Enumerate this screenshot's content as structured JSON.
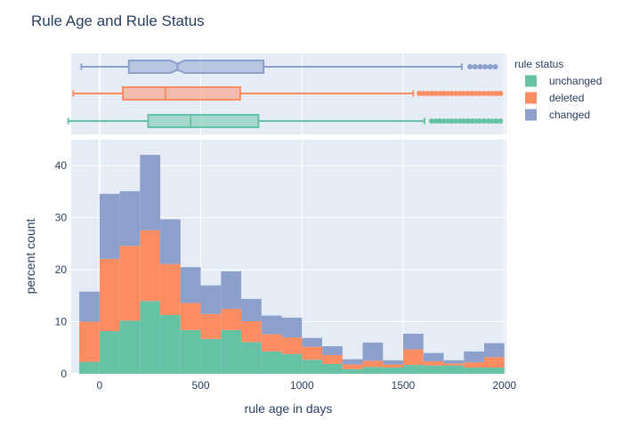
{
  "chart_data": {
    "type": "histogram-stacked-with-boxplots",
    "title": "Rule Age and Rule Status",
    "xlabel": "rule age in days",
    "ylabel": "percent count",
    "xlim": [
      -140,
      2010
    ],
    "ylim": [
      0,
      45
    ],
    "x_ticks": [
      0,
      500,
      1000,
      1500,
      2000
    ],
    "y_ticks": [
      0,
      10,
      20,
      30,
      40
    ],
    "legend_title": "rule status",
    "legend_position": "right",
    "grid": true,
    "colors": {
      "plot_bg": "#e5ecf6",
      "grid": "#ffffff",
      "text": "#2a3f5f"
    },
    "bin_edges": [
      -100,
      0,
      100,
      200,
      300,
      400,
      500,
      600,
      700,
      800,
      900,
      1000,
      1100,
      1200,
      1300,
      1400,
      1500,
      1600,
      1700,
      1800,
      1900,
      2000
    ],
    "series": [
      {
        "name": "unchanged",
        "color": "#66c2a5",
        "values": [
          2.3,
          8.2,
          10.2,
          14.0,
          11.3,
          8.4,
          6.7,
          8.4,
          6.1,
          4.3,
          3.8,
          2.7,
          1.9,
          0.9,
          1.3,
          1.2,
          1.7,
          1.6,
          1.6,
          1.2,
          1.2
        ]
      },
      {
        "name": "deleted",
        "color": "#fc8d62",
        "values": [
          7.7,
          13.9,
          14.4,
          13.6,
          9.8,
          5.2,
          4.8,
          4.1,
          4.0,
          3.3,
          3.2,
          2.5,
          1.7,
          0.9,
          1.2,
          0.6,
          3.0,
          0.8,
          0.4,
          1.0,
          2.0
        ]
      },
      {
        "name": "changed",
        "color": "#8da0cb",
        "values": [
          5.8,
          12.5,
          10.5,
          14.5,
          8.6,
          6.9,
          5.5,
          7.2,
          4.3,
          3.6,
          3.8,
          1.7,
          1.7,
          1.0,
          3.5,
          0.8,
          3.0,
          1.6,
          0.6,
          2.1,
          2.7
        ]
      }
    ],
    "boxplots": [
      {
        "name": "changed",
        "min": -90,
        "q1": 145,
        "median": 385,
        "q3": 810,
        "max": 1790,
        "notched": true,
        "outliers": [
          1830,
          1855,
          1880,
          1905,
          1930,
          1955
        ]
      },
      {
        "name": "deleted",
        "min": -130,
        "q1": 115,
        "median": 325,
        "q3": 695,
        "max": 1550,
        "notched": false,
        "outliers": [
          1580,
          1600,
          1620,
          1640,
          1660,
          1680,
          1700,
          1720,
          1740,
          1760,
          1780,
          1800,
          1820,
          1840,
          1860,
          1880,
          1900,
          1920,
          1940,
          1960,
          1980
        ]
      },
      {
        "name": "unchanged",
        "min": -155,
        "q1": 240,
        "median": 450,
        "q3": 785,
        "max": 1605,
        "notched": false,
        "outliers": [
          1640,
          1660,
          1680,
          1700,
          1720,
          1740,
          1760,
          1780,
          1800,
          1820,
          1840,
          1860,
          1880,
          1900,
          1920,
          1940,
          1960,
          1980
        ]
      }
    ]
  }
}
